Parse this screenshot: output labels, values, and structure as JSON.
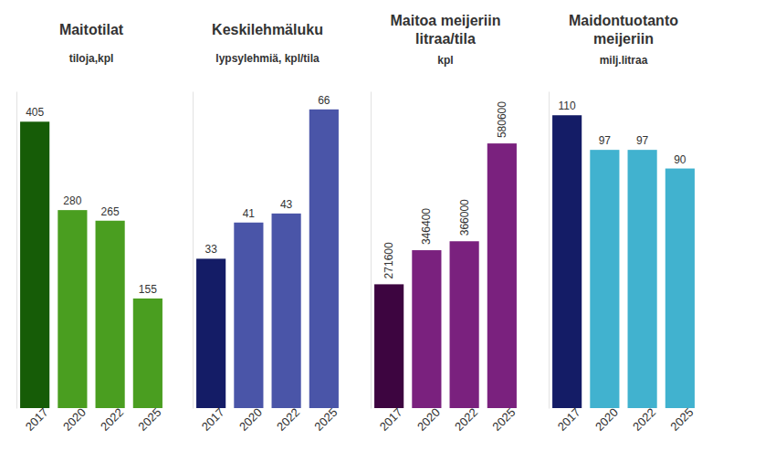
{
  "chart_data": [
    {
      "type": "bar",
      "title": "Maitotilat",
      "subtitle": "tiloja,kpl",
      "categories": [
        "2017",
        "2020",
        "2022",
        "2025"
      ],
      "values": [
        405,
        280,
        265,
        155
      ],
      "colors": [
        "#165c07",
        "#4a9e20",
        "#4a9e20",
        "#4a9e20"
      ],
      "ylim": [
        0,
        448
      ],
      "data_labels": true,
      "tick_labels": "x",
      "grid": false
    },
    {
      "type": "bar",
      "title": "Keskilehmäluku",
      "subtitle": "lypsylehmiä, kpl/tila",
      "categories": [
        "2017",
        "2020",
        "2022",
        "2025"
      ],
      "values": [
        33,
        41,
        43,
        66
      ],
      "colors": [
        "#141c66",
        "#4a55a8",
        "#4a55a8",
        "#4a55a8"
      ],
      "ylim": [
        0,
        70
      ],
      "data_labels": true,
      "tick_labels": "x",
      "grid": false
    },
    {
      "type": "bar",
      "title": "Maitoa meijeriin litraa/tila",
      "subtitle": "kpl",
      "categories": [
        "2017",
        "2020",
        "2022",
        "2025"
      ],
      "values": [
        271600,
        346400,
        366000,
        580600
      ],
      "colors": [
        "#3d0540",
        "#7a217e",
        "#7a217e",
        "#7a217e"
      ],
      "ylim": [
        0,
        695000
      ],
      "data_labels": true,
      "tick_labels": "x",
      "grid": false
    },
    {
      "type": "bar",
      "title": "Maidontuotanto meijeriin",
      "subtitle": "milj.litraa",
      "categories": [
        "2017",
        "2020",
        "2022",
        "2025"
      ],
      "values": [
        110,
        97,
        97,
        90
      ],
      "colors": [
        "#141c66",
        "#41b2cf",
        "#41b2cf",
        "#41b2cf"
      ],
      "ylim": [
        0,
        119
      ],
      "data_labels": true,
      "tick_labels": "x",
      "grid": false
    }
  ]
}
